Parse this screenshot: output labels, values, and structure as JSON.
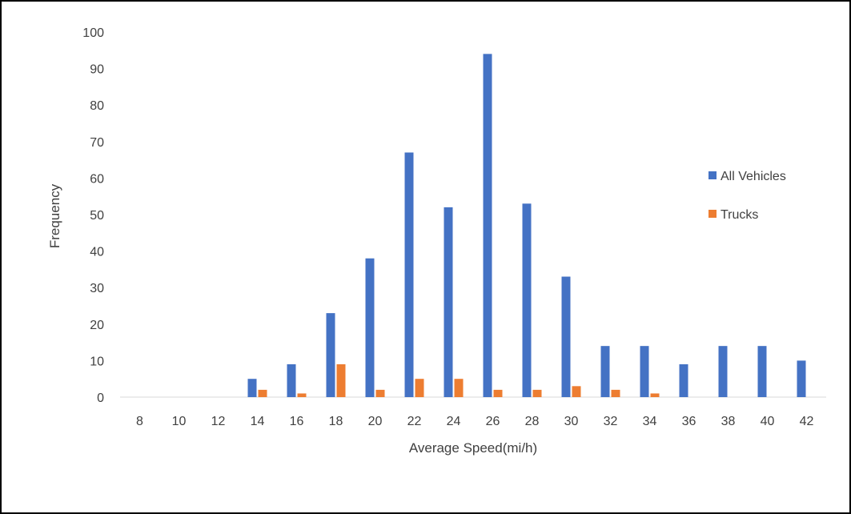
{
  "chart_data": {
    "type": "bar",
    "title": "",
    "xlabel": "Average Speed(mi/h)",
    "ylabel": "Frequency",
    "categories": [
      "8",
      "10",
      "12",
      "14",
      "16",
      "18",
      "20",
      "22",
      "24",
      "26",
      "28",
      "30",
      "32",
      "34",
      "36",
      "38",
      "40",
      "42"
    ],
    "series": [
      {
        "name": "All Vehicles",
        "color": "#4472C4",
        "values": [
          0,
          0,
          0,
          5,
          9,
          23,
          38,
          67,
          52,
          94,
          53,
          33,
          14,
          14,
          9,
          14,
          14,
          10
        ]
      },
      {
        "name": "Trucks",
        "color": "#ED7D31",
        "values": [
          0,
          0,
          0,
          2,
          1,
          9,
          2,
          5,
          5,
          2,
          2,
          3,
          2,
          1,
          0,
          0,
          0,
          0
        ]
      }
    ],
    "ylim": [
      0,
      100
    ],
    "yticks": [
      0,
      10,
      20,
      30,
      40,
      50,
      60,
      70,
      80,
      90,
      100
    ],
    "grid": false,
    "legend": "right"
  }
}
